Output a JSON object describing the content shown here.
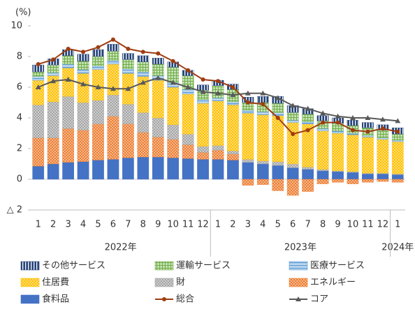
{
  "chart_data": {
    "type": "bar",
    "stacked": true,
    "y_label": "(%)",
    "ylim": [
      -2,
      10
    ],
    "yticks": [
      {
        "value": -2,
        "label": "△ 2"
      },
      0,
      2,
      4,
      6,
      8,
      10
    ],
    "categories": [
      "1",
      "2",
      "3",
      "4",
      "5",
      "6",
      "7",
      "8",
      "9",
      "10",
      "11",
      "12",
      "1",
      "2",
      "3",
      "4",
      "5",
      "6",
      "7",
      "8",
      "9",
      "10",
      "11",
      "12",
      "1"
    ],
    "groups": [
      {
        "label": "2022年",
        "count": 12
      },
      {
        "label": "2023年",
        "count": 12
      },
      {
        "label": "2024年",
        "count": 1
      }
    ],
    "series": [
      {
        "name": "食料品",
        "color": "#4472c4",
        "pattern": "solid",
        "values": [
          0.85,
          1.0,
          1.1,
          1.15,
          1.25,
          1.3,
          1.4,
          1.45,
          1.45,
          1.4,
          1.35,
          1.3,
          1.3,
          1.25,
          1.1,
          1.0,
          0.9,
          0.75,
          0.65,
          0.55,
          0.5,
          0.45,
          0.35,
          0.35,
          0.3
        ]
      },
      {
        "name": "エネルギー",
        "color": "#ed7d31",
        "pattern": "dots",
        "values": [
          1.85,
          1.7,
          2.2,
          2.05,
          2.35,
          2.8,
          2.2,
          1.6,
          1.3,
          1.2,
          0.9,
          0.45,
          0.6,
          0.4,
          -0.4,
          -0.35,
          -0.75,
          -1.05,
          -0.8,
          -0.3,
          -0.2,
          -0.3,
          -0.2,
          -0.15,
          -0.2
        ]
      },
      {
        "name": "財",
        "color": "#a5a5a5",
        "pattern": "dots",
        "values": [
          2.15,
          2.35,
          2.1,
          1.8,
          1.55,
          1.4,
          1.3,
          1.3,
          1.25,
          0.95,
          0.7,
          0.4,
          0.3,
          0.2,
          0.2,
          0.2,
          0.25,
          0.25,
          0.15,
          0.1,
          0.05,
          0.05,
          0.05,
          0.05,
          0.05
        ]
      },
      {
        "name": "住居費",
        "color": "#ffc000",
        "pattern": "dots",
        "values": [
          1.6,
          1.7,
          1.85,
          1.9,
          2.0,
          2.0,
          2.0,
          2.35,
          2.45,
          2.45,
          2.6,
          2.8,
          2.9,
          3.0,
          3.0,
          3.0,
          3.0,
          2.7,
          2.8,
          2.5,
          2.45,
          2.4,
          2.35,
          2.2,
          2.1
        ]
      },
      {
        "name": "医療サービス",
        "color": "#5b9bd5",
        "pattern": "hlines",
        "values": [
          0.25,
          0.2,
          0.25,
          0.25,
          0.25,
          0.25,
          0.3,
          0.3,
          0.3,
          0.3,
          0.3,
          0.25,
          0.2,
          0.2,
          0.2,
          0.2,
          0.2,
          0.15,
          0.15,
          0.15,
          0.15,
          0.1,
          0.1,
          0.1,
          0.1
        ]
      },
      {
        "name": "運輸サービス",
        "color": "#70ad47",
        "pattern": "grid",
        "values": [
          0.3,
          0.5,
          0.55,
          0.55,
          0.6,
          0.6,
          0.6,
          0.65,
          0.75,
          1.0,
          0.9,
          0.6,
          0.8,
          0.8,
          0.5,
          0.6,
          0.6,
          0.5,
          0.5,
          0.5,
          0.5,
          0.5,
          0.5,
          0.5,
          0.4
        ]
      },
      {
        "name": "その他サービス",
        "color": "#264478",
        "pattern": "vlines",
        "values": [
          0.45,
          0.4,
          0.4,
          0.45,
          0.45,
          0.45,
          0.4,
          0.4,
          0.4,
          0.35,
          0.35,
          0.35,
          0.35,
          0.35,
          0.35,
          0.4,
          0.45,
          0.45,
          0.35,
          0.35,
          0.35,
          0.35,
          0.35,
          0.35,
          0.4
        ]
      },
      {
        "name": "総合",
        "type": "line",
        "color": "#9e3d12",
        "marker": "circle",
        "values": [
          7.5,
          7.8,
          8.5,
          8.3,
          8.6,
          9.1,
          8.5,
          8.3,
          8.2,
          7.7,
          7.1,
          6.5,
          6.4,
          6.0,
          5.0,
          4.9,
          4.0,
          2.95,
          3.2,
          3.7,
          3.7,
          3.2,
          3.1,
          3.3,
          3.1
        ]
      },
      {
        "name": "コア",
        "type": "line",
        "color": "#595959",
        "marker": "triangle",
        "values": [
          6.0,
          6.4,
          6.5,
          6.2,
          6.0,
          5.9,
          5.9,
          6.3,
          6.6,
          6.3,
          6.0,
          5.7,
          5.6,
          5.5,
          5.6,
          5.6,
          5.3,
          4.8,
          4.6,
          4.3,
          4.1,
          4.0,
          4.0,
          3.9,
          3.8
        ]
      }
    ]
  }
}
